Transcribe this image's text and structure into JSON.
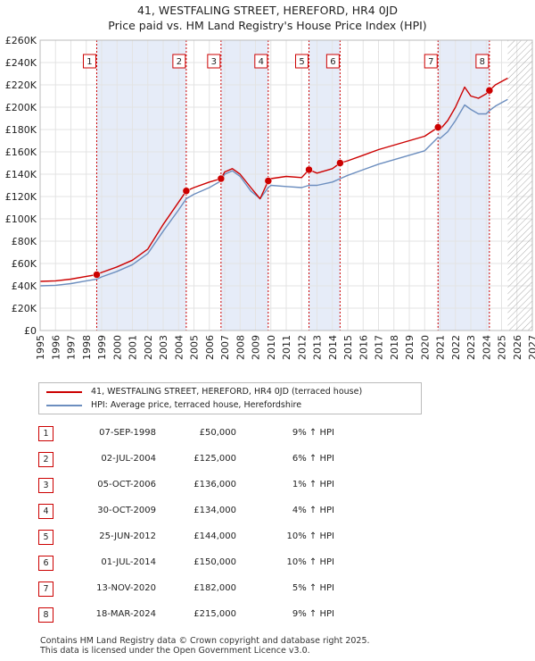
{
  "title_line1": "41, WESTFALING STREET, HEREFORD, HR4 0JD",
  "title_line2": "Price paid vs. HM Land Registry's House Price Index (HPI)",
  "legend": {
    "property": "41, WESTFALING STREET, HEREFORD, HR4 0JD (terraced house)",
    "hpi": "HPI: Average price, terraced house, Herefordshire",
    "property_color": "#cc0000",
    "hpi_color": "#6c8ebf"
  },
  "sales": [
    {
      "num": "1",
      "date": "07-SEP-1998",
      "price": "£50,000",
      "hpi": "9% ↑ HPI"
    },
    {
      "num": "2",
      "date": "02-JUL-2004",
      "price": "£125,000",
      "hpi": "6% ↑ HPI"
    },
    {
      "num": "3",
      "date": "05-OCT-2006",
      "price": "£136,000",
      "hpi": "1% ↑ HPI"
    },
    {
      "num": "4",
      "date": "30-OCT-2009",
      "price": "£134,000",
      "hpi": "4% ↑ HPI"
    },
    {
      "num": "5",
      "date": "25-JUN-2012",
      "price": "£144,000",
      "hpi": "10% ↑ HPI"
    },
    {
      "num": "6",
      "date": "01-JUL-2014",
      "price": "£150,000",
      "hpi": "10% ↑ HPI"
    },
    {
      "num": "7",
      "date": "13-NOV-2020",
      "price": "£182,000",
      "hpi": "5% ↑ HPI"
    },
    {
      "num": "8",
      "date": "18-MAR-2024",
      "price": "£215,000",
      "hpi": "9% ↑ HPI"
    }
  ],
  "footer_line1": "Contains HM Land Registry data © Crown copyright and database right 2025.",
  "footer_line2": "This data is licensed under the Open Government Licence v3.0.",
  "chart_data": {
    "type": "line",
    "xlim": [
      1995,
      2027
    ],
    "ylim": [
      0,
      260000
    ],
    "ytick_values": [
      0,
      20000,
      40000,
      60000,
      80000,
      100000,
      120000,
      140000,
      160000,
      180000,
      200000,
      220000,
      240000,
      260000
    ],
    "ytick_labels": [
      "£0",
      "£20K",
      "£40K",
      "£60K",
      "£80K",
      "£100K",
      "£120K",
      "£140K",
      "£160K",
      "£180K",
      "£200K",
      "£220K",
      "£240K",
      "£260K"
    ],
    "xtick_labels": [
      "1995",
      "1996",
      "1997",
      "1998",
      "1999",
      "2000",
      "2001",
      "2002",
      "2003",
      "2004",
      "2005",
      "2006",
      "2007",
      "2008",
      "2009",
      "2010",
      "2011",
      "2012",
      "2013",
      "2014",
      "2015",
      "2016",
      "2017",
      "2018",
      "2019",
      "2020",
      "2021",
      "2022",
      "2023",
      "2024",
      "2025",
      "2026",
      "2027"
    ],
    "grid": true,
    "forecast_start": 2025.4,
    "shaded_periods": [
      [
        1998.68,
        2004.5
      ],
      [
        2006.76,
        2009.83
      ],
      [
        2012.48,
        2014.5
      ],
      [
        2020.87,
        2024.21
      ]
    ],
    "sale_points": [
      {
        "label": "1",
        "x": 1998.68,
        "y": 50000
      },
      {
        "label": "2",
        "x": 2004.5,
        "y": 125000
      },
      {
        "label": "3",
        "x": 2006.76,
        "y": 136000
      },
      {
        "label": "4",
        "x": 2009.83,
        "y": 134000
      },
      {
        "label": "5",
        "x": 2012.48,
        "y": 144000
      },
      {
        "label": "6",
        "x": 2014.5,
        "y": 150000
      },
      {
        "label": "7",
        "x": 2020.87,
        "y": 182000
      },
      {
        "label": "8",
        "x": 2024.21,
        "y": 215000
      }
    ],
    "series": [
      {
        "name": "41, WESTFALING STREET, HEREFORD, HR4 0JD (terraced house)",
        "color": "#cc0000",
        "points": [
          [
            1995,
            44000
          ],
          [
            1996,
            44500
          ],
          [
            1997,
            46000
          ],
          [
            1998,
            48500
          ],
          [
            1998.68,
            50000
          ],
          [
            1999,
            52000
          ],
          [
            2000,
            57000
          ],
          [
            2001,
            63000
          ],
          [
            2002,
            73000
          ],
          [
            2003,
            95000
          ],
          [
            2004,
            115000
          ],
          [
            2004.5,
            125000
          ],
          [
            2005,
            128000
          ],
          [
            2006,
            133000
          ],
          [
            2006.76,
            136000
          ],
          [
            2007,
            142000
          ],
          [
            2007.5,
            145000
          ],
          [
            2008,
            140000
          ],
          [
            2008.7,
            128000
          ],
          [
            2009.3,
            118000
          ],
          [
            2009.83,
            134000
          ],
          [
            2010,
            136000
          ],
          [
            2011,
            138000
          ],
          [
            2012,
            137000
          ],
          [
            2012.48,
            144000
          ],
          [
            2013,
            141000
          ],
          [
            2014,
            145000
          ],
          [
            2014.5,
            150000
          ],
          [
            2015,
            152000
          ],
          [
            2016,
            157000
          ],
          [
            2017,
            162000
          ],
          [
            2018,
            166000
          ],
          [
            2019,
            170000
          ],
          [
            2020,
            174000
          ],
          [
            2020.87,
            182000
          ],
          [
            2021,
            180000
          ],
          [
            2021.5,
            188000
          ],
          [
            2022,
            200000
          ],
          [
            2022.6,
            218000
          ],
          [
            2023,
            210000
          ],
          [
            2023.5,
            208000
          ],
          [
            2024,
            212000
          ],
          [
            2024.21,
            215000
          ],
          [
            2024.6,
            220000
          ],
          [
            2025,
            223000
          ],
          [
            2025.4,
            226000
          ]
        ]
      },
      {
        "name": "HPI: Average price, terraced house, Herefordshire",
        "color": "#6c8ebf",
        "points": [
          [
            1995,
            40000
          ],
          [
            1996,
            40500
          ],
          [
            1997,
            42000
          ],
          [
            1998,
            44500
          ],
          [
            1998.68,
            46000
          ],
          [
            1999,
            48000
          ],
          [
            2000,
            53000
          ],
          [
            2001,
            59000
          ],
          [
            2002,
            69000
          ],
          [
            2003,
            89000
          ],
          [
            2004,
            108000
          ],
          [
            2004.5,
            118000
          ],
          [
            2005,
            122000
          ],
          [
            2006,
            128000
          ],
          [
            2006.76,
            134000
          ],
          [
            2007,
            140000
          ],
          [
            2007.5,
            143000
          ],
          [
            2008,
            138000
          ],
          [
            2008.7,
            125000
          ],
          [
            2009.3,
            118000
          ],
          [
            2009.83,
            128000
          ],
          [
            2010,
            130000
          ],
          [
            2011,
            129000
          ],
          [
            2012,
            128000
          ],
          [
            2012.48,
            130000
          ],
          [
            2013,
            130000
          ],
          [
            2014,
            133000
          ],
          [
            2014.5,
            136000
          ],
          [
            2015,
            139000
          ],
          [
            2016,
            144000
          ],
          [
            2017,
            149000
          ],
          [
            2018,
            153000
          ],
          [
            2019,
            157000
          ],
          [
            2020,
            161000
          ],
          [
            2020.87,
            173000
          ],
          [
            2021,
            172000
          ],
          [
            2021.5,
            178000
          ],
          [
            2022,
            188000
          ],
          [
            2022.6,
            202000
          ],
          [
            2023,
            198000
          ],
          [
            2023.5,
            194000
          ],
          [
            2024,
            194000
          ],
          [
            2024.21,
            197000
          ],
          [
            2024.6,
            201000
          ],
          [
            2025,
            204000
          ],
          [
            2025.4,
            207000
          ]
        ]
      }
    ]
  }
}
